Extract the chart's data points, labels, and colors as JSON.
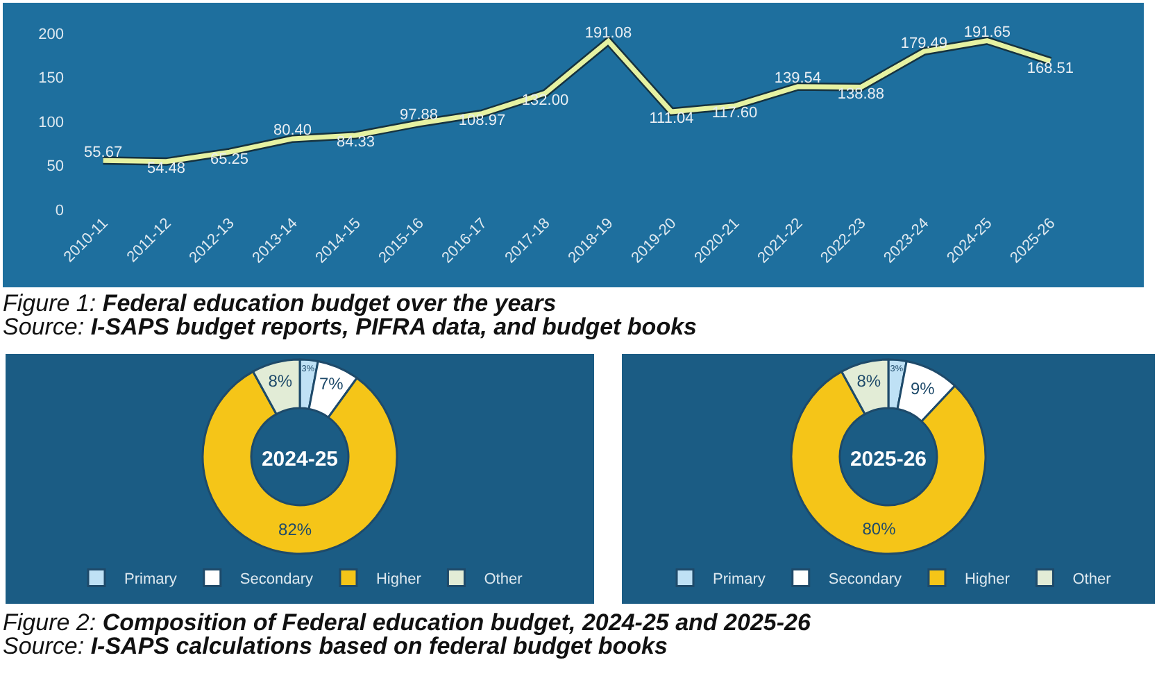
{
  "chart_data": [
    {
      "type": "line",
      "categories": [
        "2010-11",
        "2011-12",
        "2012-13",
        "2013-14",
        "2014-15",
        "2015-16",
        "2016-17",
        "2017-18",
        "2018-19",
        "2019-20",
        "2020-21",
        "2021-22",
        "2022-23",
        "2023-24",
        "2024-25",
        "2025-26"
      ],
      "series": [
        {
          "color": "#e6f2a2",
          "values": [
            55.67,
            54.48,
            65.25,
            80.4,
            84.33,
            97.88,
            108.97,
            132.0,
            191.08,
            111.04,
            117.6,
            139.54,
            138.88,
            179.49,
            191.65,
            168.51
          ],
          "value_labels": [
            "55.67",
            "54.48",
            "65.25",
            "80.40",
            "84.33",
            "97.88",
            "108.97",
            "132.00",
            "191.08",
            "111.04",
            "117.60",
            "139.54",
            "138.88",
            "179.49",
            "191.65",
            "168.51"
          ]
        }
      ],
      "ylim": [
        0,
        200
      ],
      "yticks": [
        0,
        50,
        100,
        150,
        200
      ],
      "grid": false,
      "legend": false,
      "marker": "none",
      "line_style": "solid",
      "annotations": [
        "Figure 1: Federal education budget over the years",
        "Source: I-SAPS budget reports, PIFRA data, and budget books"
      ]
    },
    {
      "type": "donut",
      "title": "2024-25",
      "categories": [
        "Primary",
        "Secondary",
        "Higher",
        "Other"
      ],
      "values": [
        3,
        7,
        82,
        8
      ],
      "colors": [
        "#bfe1f5",
        "#ffffff",
        "#f5c518",
        "#e2ecd6"
      ],
      "value_labels": [
        "3%",
        "7%",
        "82%",
        "8%"
      ],
      "legend": "bottom",
      "annotations": [
        "Figure 2: Composition of Federal education budget, 2024-25 and 2025-26",
        "Source: I-SAPS calculations based on federal budget books"
      ]
    },
    {
      "type": "donut",
      "title": "2025-26",
      "categories": [
        "Primary",
        "Secondary",
        "Higher",
        "Other"
      ],
      "values": [
        3,
        9,
        80,
        8
      ],
      "colors": [
        "#bfe1f5",
        "#ffffff",
        "#f5c518",
        "#e2ecd6"
      ],
      "value_labels": [
        "3%",
        "9%",
        "80%",
        "8%"
      ],
      "legend": "bottom"
    }
  ]
}
